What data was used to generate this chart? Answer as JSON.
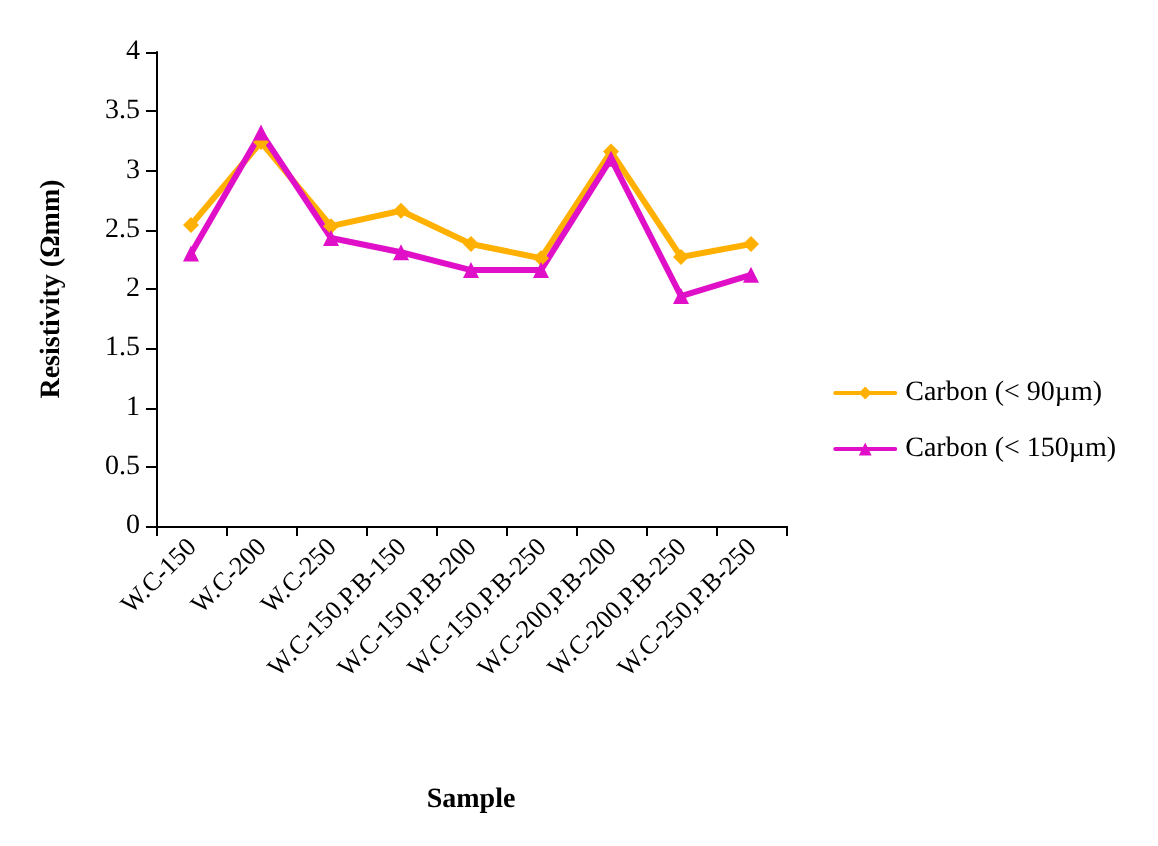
{
  "chart_data": {
    "type": "line",
    "xlabel": "Sample",
    "ylabel": "Resistivity (Ωmm)",
    "categories": [
      "W.C-150",
      "W.C-200",
      "W.C-250",
      "W.C-150,P.B-150",
      "W.C-150,P.B-200",
      "W.C-150,P.B-250",
      "W.C-200,P.B-200",
      "W.C-200,P.B-250",
      "W.C-250,P.B-250"
    ],
    "series": [
      {
        "name": "Carbon (< 90µm)",
        "color": "#ffb000",
        "marker": "diamond",
        "values": [
          2.54,
          3.24,
          2.53,
          2.66,
          2.38,
          2.26,
          3.16,
          2.27,
          2.38
        ]
      },
      {
        "name": "Carbon (< 150µm)",
        "color": "#e010c8",
        "marker": "triangle",
        "values": [
          2.3,
          3.32,
          2.43,
          2.31,
          2.16,
          2.16,
          3.1,
          1.94,
          2.12
        ]
      }
    ],
    "ylim": [
      0,
      4
    ],
    "yticks": [
      0,
      0.5,
      1,
      1.5,
      2,
      2.5,
      3,
      3.5,
      4
    ],
    "grid": false,
    "legend": "right",
    "line_style": "solid"
  }
}
